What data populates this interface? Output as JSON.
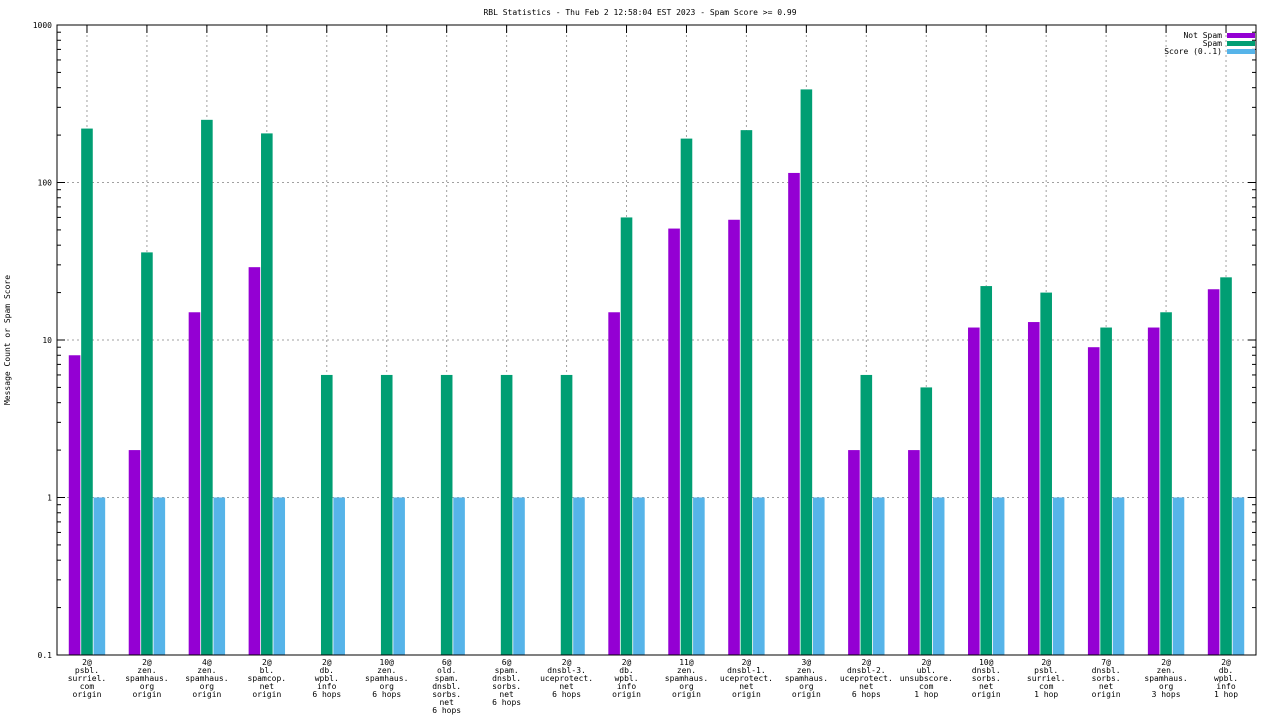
{
  "chart_data": {
    "type": "bar",
    "title": "RBL Statistics - Thu Feb  2 12:58:04 EST 2023 - Spam Score >= 0.99",
    "ylabel": "Message Count or Spam Score",
    "yscale": "log",
    "ylim": [
      0.1,
      1000
    ],
    "yticks": [
      "0.1",
      "1",
      "10",
      "100",
      "1000"
    ],
    "grid": true,
    "legend_position": "top-right",
    "categories": [
      [
        "2@",
        "psbl.",
        "surriel.",
        "com",
        "origin"
      ],
      [
        "2@",
        "zen.",
        "spamhaus.",
        "org",
        "origin"
      ],
      [
        "4@",
        "zen.",
        "spamhaus.",
        "org",
        "origin"
      ],
      [
        "2@",
        "bl.",
        "spamcop.",
        "net",
        "origin"
      ],
      [
        "2@",
        "db.",
        "wpbl.",
        "info",
        "6 hops"
      ],
      [
        "10@",
        "zen.",
        "spamhaus.",
        "org",
        "6 hops"
      ],
      [
        "6@",
        "old.",
        "spam.",
        "dnsbl.",
        "sorbs.",
        "net",
        "6 hops"
      ],
      [
        "6@",
        "spam.",
        "dnsbl.",
        "sorbs.",
        "net",
        "6 hops"
      ],
      [
        "2@",
        "dnsbl-3.",
        "uceprotect.",
        "net",
        "6 hops"
      ],
      [
        "2@",
        "db.",
        "wpbl.",
        "info",
        "origin"
      ],
      [
        "11@",
        "zen.",
        "spamhaus.",
        "org",
        "origin"
      ],
      [
        "2@",
        "dnsbl-1.",
        "uceprotect.",
        "net",
        "origin"
      ],
      [
        "3@",
        "zen.",
        "spamhaus.",
        "org",
        "origin"
      ],
      [
        "2@",
        "dnsbl-2.",
        "uceprotect.",
        "net",
        "6 hops"
      ],
      [
        "2@",
        "ubl.",
        "unsubscore.",
        "com",
        "1 hop"
      ],
      [
        "10@",
        "dnsbl.",
        "sorbs.",
        "net",
        "origin"
      ],
      [
        "2@",
        "psbl.",
        "surriel.",
        "com",
        "1 hop"
      ],
      [
        "7@",
        "dnsbl.",
        "sorbs.",
        "net",
        "origin"
      ],
      [
        "2@",
        "zen.",
        "spamhaus.",
        "org",
        "3 hops"
      ],
      [
        "2@",
        "db.",
        "wpbl.",
        "info",
        "1 hop"
      ]
    ],
    "series": [
      {
        "name": "Not Spam",
        "color": "#9400d3",
        "values": [
          8,
          2,
          15,
          29,
          0,
          0,
          0,
          0,
          0,
          15,
          51,
          58,
          115,
          2,
          2,
          12,
          13,
          9,
          12,
          21
        ]
      },
      {
        "name": "Spam",
        "color": "#009e73",
        "values": [
          220,
          36,
          250,
          205,
          6,
          6,
          6,
          6,
          6,
          60,
          190,
          215,
          390,
          6,
          5,
          22,
          20,
          12,
          15,
          25
        ]
      },
      {
        "name": "Score (0..1)",
        "color": "#56b4e9",
        "values": [
          1,
          1,
          1,
          1,
          1,
          1,
          1,
          1,
          1,
          1,
          1,
          1,
          1,
          1,
          1,
          1,
          1,
          1,
          1,
          1
        ]
      }
    ]
  }
}
